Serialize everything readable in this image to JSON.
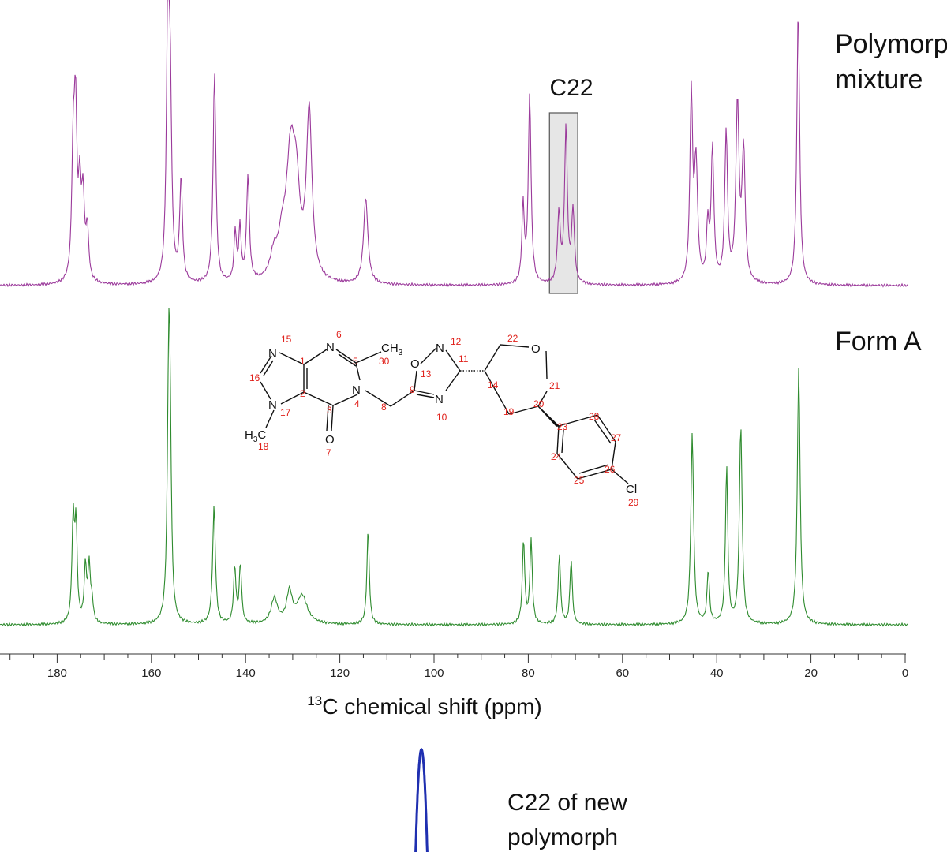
{
  "colors": {
    "polymorph": "#9b3a9b",
    "form_a": "#2e8b2e",
    "c22_new": "#1f2fb0",
    "molecule_numbers": "#e0201a",
    "axis": "#333333"
  },
  "chart_data": {
    "type": "line",
    "xlabel_sup": "13",
    "xlabel": "C chemical shift (ppm)",
    "xlim": [
      0,
      200
    ],
    "x_reversed": true,
    "tick_labels": [
      "180",
      "160",
      "140",
      "120",
      "100",
      "80",
      "60",
      "40",
      "20",
      "0"
    ],
    "tick_values": [
      180,
      160,
      140,
      120,
      100,
      80,
      60,
      40,
      20,
      0
    ],
    "series": [
      {
        "name": "Polymorph mixture",
        "name_lines": [
          "Polymorph",
          "mixture"
        ],
        "color": "#9b3a9b",
        "peaks": [
          {
            "x": 176.6,
            "h": 0.42,
            "w": 0.35
          },
          {
            "x": 176.1,
            "h": 0.58,
            "w": 0.35
          },
          {
            "x": 175.2,
            "h": 0.3,
            "w": 0.35
          },
          {
            "x": 174.5,
            "h": 0.28,
            "w": 0.35
          },
          {
            "x": 173.6,
            "h": 0.18,
            "w": 0.35
          },
          {
            "x": 156.5,
            "h": 0.95,
            "w": 0.35
          },
          {
            "x": 156.0,
            "h": 0.6,
            "w": 0.35
          },
          {
            "x": 153.7,
            "h": 0.37,
            "w": 0.35
          },
          {
            "x": 146.6,
            "h": 0.76,
            "w": 0.35
          },
          {
            "x": 142.2,
            "h": 0.18,
            "w": 0.3
          },
          {
            "x": 141.2,
            "h": 0.19,
            "w": 0.3
          },
          {
            "x": 139.5,
            "h": 0.38,
            "w": 0.35
          },
          {
            "x": 134.0,
            "h": 0.08,
            "w": 0.9
          },
          {
            "x": 132.3,
            "h": 0.1,
            "w": 0.9
          },
          {
            "x": 130.4,
            "h": 0.46,
            "w": 1.2
          },
          {
            "x": 129.2,
            "h": 0.22,
            "w": 0.8
          },
          {
            "x": 126.5,
            "h": 0.6,
            "w": 0.7
          },
          {
            "x": 114.5,
            "h": 0.31,
            "w": 0.55
          },
          {
            "x": 81.1,
            "h": 0.28,
            "w": 0.3
          },
          {
            "x": 79.7,
            "h": 0.68,
            "w": 0.35
          },
          {
            "x": 73.5,
            "h": 0.25,
            "w": 0.35
          },
          {
            "x": 72.0,
            "h": 0.56,
            "w": 0.35
          },
          {
            "x": 70.5,
            "h": 0.26,
            "w": 0.35
          },
          {
            "x": 45.4,
            "h": 0.67,
            "w": 0.35
          },
          {
            "x": 44.4,
            "h": 0.42,
            "w": 0.4
          },
          {
            "x": 41.9,
            "h": 0.2,
            "w": 0.3
          },
          {
            "x": 40.9,
            "h": 0.48,
            "w": 0.35
          },
          {
            "x": 38.0,
            "h": 0.54,
            "w": 0.35
          },
          {
            "x": 35.6,
            "h": 0.64,
            "w": 0.4
          },
          {
            "x": 34.3,
            "h": 0.47,
            "w": 0.4
          },
          {
            "x": 22.7,
            "h": 1.0,
            "w": 0.35
          }
        ]
      },
      {
        "name": "Form A",
        "color": "#2e8b2e",
        "peaks": [
          {
            "x": 176.6,
            "h": 0.36,
            "w": 0.3
          },
          {
            "x": 176.0,
            "h": 0.34,
            "w": 0.3
          },
          {
            "x": 174.0,
            "h": 0.2,
            "w": 0.3
          },
          {
            "x": 173.2,
            "h": 0.2,
            "w": 0.3
          },
          {
            "x": 172.6,
            "h": 0.07,
            "w": 0.3
          },
          {
            "x": 156.3,
            "h": 0.92,
            "w": 0.35
          },
          {
            "x": 156.0,
            "h": 0.4,
            "w": 0.3
          },
          {
            "x": 146.7,
            "h": 0.42,
            "w": 0.35
          },
          {
            "x": 142.3,
            "h": 0.2,
            "w": 0.3
          },
          {
            "x": 141.1,
            "h": 0.21,
            "w": 0.3
          },
          {
            "x": 133.9,
            "h": 0.09,
            "w": 0.8
          },
          {
            "x": 130.7,
            "h": 0.11,
            "w": 0.7
          },
          {
            "x": 128.0,
            "h": 0.1,
            "w": 1.3
          },
          {
            "x": 114.0,
            "h": 0.34,
            "w": 0.3
          },
          {
            "x": 81.0,
            "h": 0.3,
            "w": 0.3
          },
          {
            "x": 79.4,
            "h": 0.3,
            "w": 0.3
          },
          {
            "x": 73.4,
            "h": 0.25,
            "w": 0.3
          },
          {
            "x": 70.9,
            "h": 0.23,
            "w": 0.3
          },
          {
            "x": 45.2,
            "h": 0.68,
            "w": 0.35
          },
          {
            "x": 41.8,
            "h": 0.19,
            "w": 0.3
          },
          {
            "x": 37.9,
            "h": 0.56,
            "w": 0.3
          },
          {
            "x": 34.9,
            "h": 0.71,
            "w": 0.35
          },
          {
            "x": 22.6,
            "h": 0.92,
            "w": 0.35
          }
        ]
      }
    ],
    "annotations": [
      {
        "text": "C22",
        "x_range": [
          69.5,
          75.5
        ]
      },
      {
        "text_lines": [
          "C22 of new",
          "polymorph"
        ]
      }
    ],
    "inset": {
      "series_name": "C22 of new polymorph",
      "peak_x": 72.0
    }
  },
  "molecule": {
    "atoms": {
      "N15": "N",
      "N6": "N",
      "CH3": "CH",
      "CH3_sub": "3",
      "N12": "N",
      "O13": "O",
      "O21": "O",
      "N17": "N",
      "N4": "N",
      "N10": "N",
      "H3C": "H",
      "H3C_sub": "3",
      "H3C_C": "C",
      "O7": "O",
      "Cl": "Cl"
    },
    "numbers": [
      "15",
      "6",
      "30",
      "12",
      "13",
      "22",
      "16",
      "1",
      "5",
      "11",
      "14",
      "21",
      "2",
      "9",
      "20",
      "17",
      "4",
      "8",
      "10",
      "19",
      "28",
      "3",
      "23",
      "27",
      "18",
      "24",
      "26",
      "7",
      "25",
      "29"
    ]
  }
}
